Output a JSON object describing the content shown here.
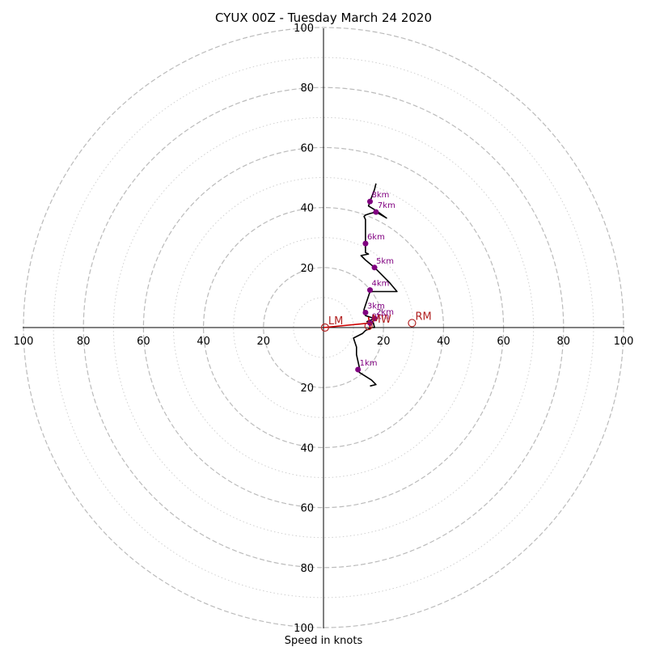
{
  "chart_data": {
    "type": "scatter",
    "title": "CYUX 00Z - Tuesday March 24 2020",
    "xlabel": "Speed in knots",
    "ylabel": "",
    "xlim": [
      -100,
      100
    ],
    "ylim": [
      -100,
      100
    ],
    "tick_values": [
      20,
      40,
      60,
      80,
      100
    ],
    "ring_styles": {
      "major": {
        "values": [
          20,
          40,
          60,
          80,
          100
        ],
        "style": "dashed"
      },
      "minor": {
        "values": [
          10,
          30,
          50,
          70,
          90
        ],
        "style": "dotted"
      }
    },
    "colors": {
      "hodograph_line": "#000000",
      "low_level_line": "#cc0000",
      "height_marker": "#800080",
      "motion_marker": "#b22222",
      "grid": "#bbbbbb",
      "axis": "#000000"
    },
    "hodograph": {
      "name": "",
      "points": [
        [
          15.5,
          -19.5
        ],
        [
          17.5,
          -19
        ],
        [
          16,
          -17.5
        ],
        [
          12,
          -15
        ],
        [
          11.5,
          -14
        ],
        [
          12,
          -13.5
        ],
        [
          11,
          -9
        ],
        [
          11,
          -6.5
        ],
        [
          10,
          -3.5
        ],
        [
          13,
          -2
        ],
        [
          14,
          -1
        ],
        [
          15,
          -0.5
        ],
        [
          16,
          0
        ],
        [
          17,
          0
        ],
        [
          16.5,
          2
        ],
        [
          14.5,
          2
        ],
        [
          17,
          3
        ],
        [
          14,
          4
        ],
        [
          13.5,
          5
        ],
        [
          13.5,
          6
        ],
        [
          14,
          7.5
        ],
        [
          14.5,
          9
        ],
        [
          15.5,
          12
        ],
        [
          24.5,
          12
        ],
        [
          22,
          15
        ],
        [
          19,
          18
        ],
        [
          17,
          20
        ],
        [
          14,
          22.5
        ],
        [
          12.5,
          24
        ],
        [
          15,
          24.5
        ],
        [
          14,
          25
        ],
        [
          14,
          28
        ],
        [
          14,
          30
        ],
        [
          14,
          34
        ],
        [
          14,
          36
        ],
        [
          13.5,
          37
        ],
        [
          14,
          37.5
        ],
        [
          15.5,
          38
        ],
        [
          17.5,
          38.5
        ],
        [
          21,
          36.5
        ],
        [
          17.5,
          39
        ],
        [
          15,
          40.5
        ],
        [
          15.5,
          42
        ],
        [
          17,
          46
        ],
        [
          17.5,
          48
        ]
      ]
    },
    "low_level_segment": {
      "points": [
        [
          0,
          0
        ],
        [
          15.5,
          1.5
        ],
        [
          15.5,
          0
        ],
        [
          15,
          3.5
        ]
      ]
    },
    "height_markers": [
      {
        "label": "0km",
        "u": 15.5,
        "v": 1.5
      },
      {
        "label": "1km",
        "u": 11.5,
        "v": -14
      },
      {
        "label": "2km",
        "u": 17,
        "v": 3
      },
      {
        "label": "3km",
        "u": 14,
        "v": 5
      },
      {
        "label": "4km",
        "u": 15.5,
        "v": 12.5
      },
      {
        "label": "5km",
        "u": 17,
        "v": 20
      },
      {
        "label": "6km",
        "u": 14,
        "v": 28
      },
      {
        "label": "7km",
        "u": 17.5,
        "v": 38.5
      },
      {
        "label": "8km",
        "u": 15.5,
        "v": 42
      }
    ],
    "storm_motions": [
      {
        "label": "LM",
        "u": 0.5,
        "v": 0
      },
      {
        "label": "RM",
        "u": 29.5,
        "v": 1.5
      },
      {
        "label": "MW",
        "u": 15,
        "v": 0.5
      }
    ]
  }
}
